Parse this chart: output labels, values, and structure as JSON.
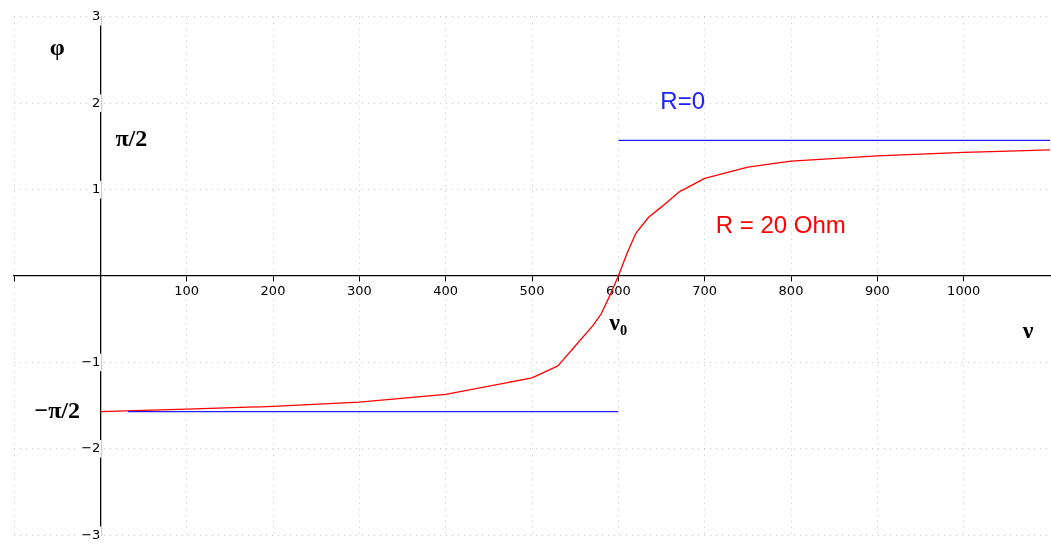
{
  "chart_data": {
    "type": "line",
    "xlabel": "ν",
    "ylabel": "φ",
    "xlim": [
      -100,
      1100
    ],
    "ylim": [
      -3,
      3
    ],
    "xticks": [
      {
        "value": -100,
        "label": null
      },
      100,
      200,
      300,
      400,
      500,
      600,
      700,
      800,
      900,
      1000
    ],
    "yticks": [
      -3,
      -2,
      -1,
      1,
      2,
      3
    ],
    "grid": true,
    "legend": false,
    "marker": "none",
    "line_style": "solid",
    "series": [
      {
        "color": "#2020ff",
        "x": [
          32,
          600
        ],
        "values": [
          -1.57,
          -1.57
        ]
      },
      {
        "name": "R=0",
        "color": "#2020ff",
        "x": [
          600,
          1100
        ],
        "values": [
          1.57,
          1.57
        ]
      },
      {
        "name": "R = 20 Ohm",
        "color": "#ff0000",
        "x": [
          0,
          100,
          200,
          300,
          400,
          500,
          530,
          550,
          570,
          580,
          590,
          600,
          610,
          620,
          635,
          650,
          670,
          700,
          750,
          800,
          900,
          1000,
          1100
        ],
        "values": [
          -1.57,
          -1.54,
          -1.51,
          -1.46,
          -1.37,
          -1.18,
          -1.04,
          -0.81,
          -0.58,
          -0.44,
          -0.23,
          0,
          0.26,
          0.49,
          0.68,
          0.8,
          0.97,
          1.13,
          1.26,
          1.33,
          1.39,
          1.43,
          1.46
        ]
      }
    ],
    "annotations": [
      "ν₀",
      "π/2",
      "−π/2"
    ]
  }
}
